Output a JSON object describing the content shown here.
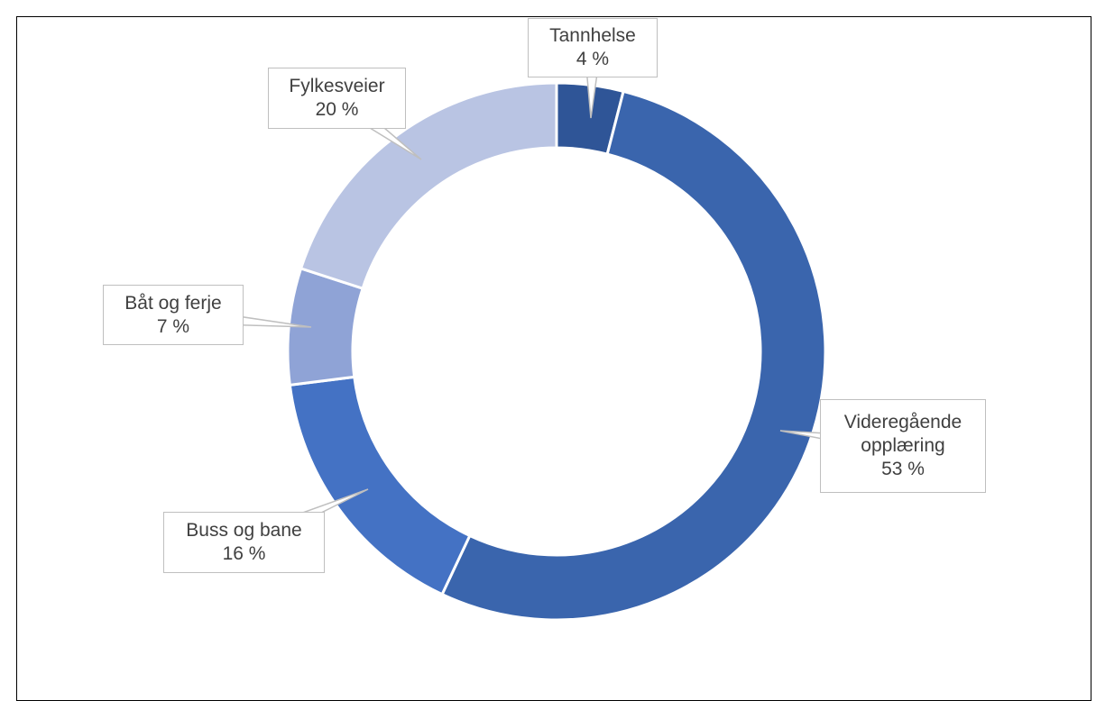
{
  "chart_data": {
    "type": "donut",
    "categories": [
      "Tannhelse",
      "Videregående opplæring",
      "Buss og bane",
      "Båt og ferje",
      "Fylkesveier"
    ],
    "values": [
      4,
      53,
      16,
      7,
      20
    ],
    "value_labels": [
      "4 %",
      "53 %",
      "16 %",
      "7 %",
      "20 %"
    ],
    "colors": [
      "#2f5597",
      "#3a65ad",
      "#4472c4",
      "#8fa3d6",
      "#b9c4e3"
    ]
  }
}
